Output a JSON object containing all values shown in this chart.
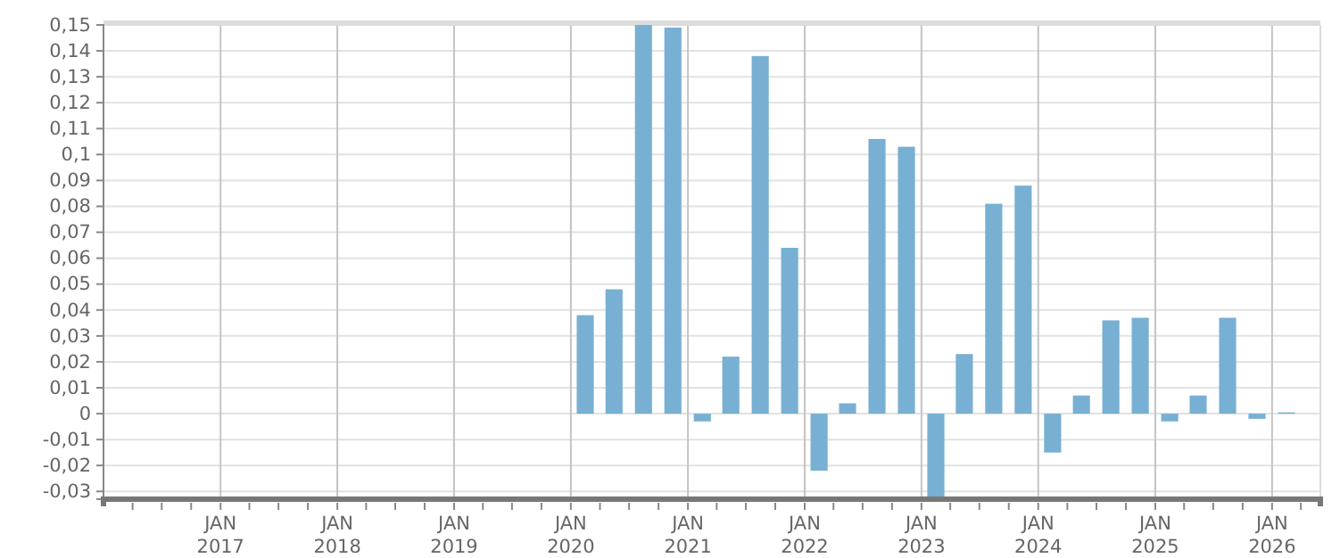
{
  "chart_data": {
    "type": "bar",
    "color": "#77b0d3",
    "grid": true,
    "x": [
      "2020-02-15",
      "2020-05-15",
      "2020-08-15",
      "2020-11-15",
      "2021-02-15",
      "2021-05-15",
      "2021-08-15",
      "2021-11-15",
      "2022-02-15",
      "2022-05-15",
      "2022-08-15",
      "2022-11-15",
      "2023-02-15",
      "2023-05-15",
      "2023-08-15",
      "2023-11-15",
      "2024-02-15",
      "2024-05-15",
      "2024-08-15",
      "2024-11-15",
      "2025-02-15",
      "2025-05-15",
      "2025-08-15",
      "2025-11-15",
      "2026-02-15"
    ],
    "values": [
      0.038,
      0.048,
      0.15,
      0.149,
      -0.003,
      0.022,
      0.138,
      0.064,
      -0.022,
      0.004,
      0.106,
      0.103,
      -0.033,
      0.023,
      0.081,
      0.088,
      -0.015,
      0.007,
      0.036,
      0.037,
      -0.003,
      0.007,
      0.037,
      -0.002,
      0.0005
    ],
    "xlim": [
      "2016-01-01",
      "2026-06-01"
    ],
    "xticks": [
      {
        "value": "2016-04-01",
        "label": null
      },
      {
        "value": "2016-07-01",
        "label": null
      },
      {
        "value": "2016-10-01",
        "label": null
      },
      {
        "value": "2017-01-01",
        "label": "JAN 2017"
      },
      {
        "value": "2017-04-01",
        "label": null
      },
      {
        "value": "2017-07-01",
        "label": null
      },
      {
        "value": "2017-10-01",
        "label": null
      },
      {
        "value": "2018-01-01",
        "label": "JAN 2018"
      },
      {
        "value": "2018-04-01",
        "label": null
      },
      {
        "value": "2018-07-01",
        "label": null
      },
      {
        "value": "2018-10-01",
        "label": null
      },
      {
        "value": "2019-01-01",
        "label": "JAN 2019"
      },
      {
        "value": "2019-04-01",
        "label": null
      },
      {
        "value": "2019-07-01",
        "label": null
      },
      {
        "value": "2019-10-01",
        "label": null
      },
      {
        "value": "2020-01-01",
        "label": "JAN 2020"
      },
      {
        "value": "2020-04-01",
        "label": null
      },
      {
        "value": "2020-07-01",
        "label": null
      },
      {
        "value": "2020-10-01",
        "label": null
      },
      {
        "value": "2021-01-01",
        "label": "JAN 2021"
      },
      {
        "value": "2021-04-01",
        "label": null
      },
      {
        "value": "2021-07-01",
        "label": null
      },
      {
        "value": "2021-10-01",
        "label": null
      },
      {
        "value": "2022-01-01",
        "label": "JAN 2022"
      },
      {
        "value": "2022-04-01",
        "label": null
      },
      {
        "value": "2022-07-01",
        "label": null
      },
      {
        "value": "2022-10-01",
        "label": null
      },
      {
        "value": "2023-01-01",
        "label": "JAN 2023"
      },
      {
        "value": "2023-04-01",
        "label": null
      },
      {
        "value": "2023-07-01",
        "label": null
      },
      {
        "value": "2023-10-01",
        "label": null
      },
      {
        "value": "2024-01-01",
        "label": "JAN 2024"
      },
      {
        "value": "2024-04-01",
        "label": null
      },
      {
        "value": "2024-07-01",
        "label": null
      },
      {
        "value": "2024-10-01",
        "label": null
      },
      {
        "value": "2025-01-01",
        "label": "JAN 2025"
      },
      {
        "value": "2025-04-01",
        "label": null
      },
      {
        "value": "2025-07-01",
        "label": null
      },
      {
        "value": "2025-10-01",
        "label": null
      },
      {
        "value": "2026-01-01",
        "label": "JAN 2026"
      },
      {
        "value": "2026-04-01",
        "label": null
      }
    ],
    "ylim": [
      -0.033,
      0.15
    ],
    "yticks": [
      {
        "value": -0.03,
        "label": "-0,03"
      },
      {
        "value": -0.02,
        "label": "-0,02"
      },
      {
        "value": -0.01,
        "label": "-0,01"
      },
      0,
      {
        "value": 0.01,
        "label": "0,01"
      },
      {
        "value": 0.02,
        "label": "0,02"
      },
      {
        "value": 0.03,
        "label": "0,03"
      },
      {
        "value": 0.04,
        "label": "0,04"
      },
      {
        "value": 0.05,
        "label": "0,05"
      },
      {
        "value": 0.06,
        "label": "0,06"
      },
      {
        "value": 0.07,
        "label": "0,07"
      },
      {
        "value": 0.08,
        "label": "0,08"
      },
      {
        "value": 0.09,
        "label": "0,09"
      },
      {
        "value": 0.1,
        "label": "0,1"
      },
      {
        "value": 0.11,
        "label": "0,11"
      },
      {
        "value": 0.12,
        "label": "0,12"
      },
      {
        "value": 0.13,
        "label": "0,13"
      },
      {
        "value": 0.14,
        "label": "0,14"
      },
      {
        "value": 0.15,
        "label": "0,15"
      }
    ]
  }
}
